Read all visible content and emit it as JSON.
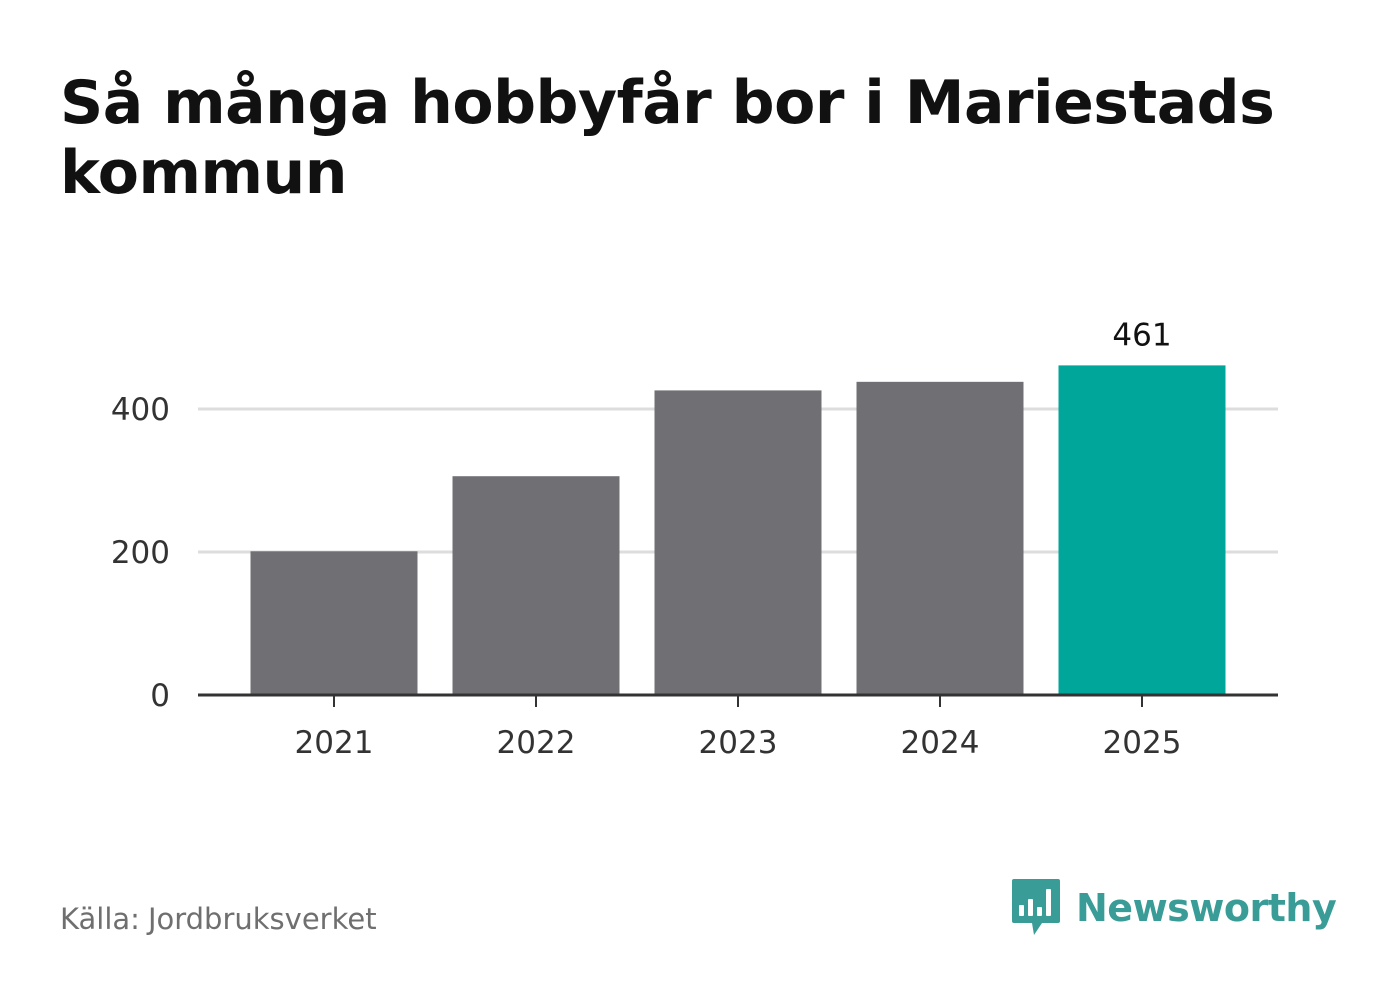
{
  "title": "Så många hobbyfår bor i Mariestads kommun",
  "source": {
    "prefix": "Källa:",
    "name": "Jordbruksverket"
  },
  "brand": {
    "name": "Newsworthy",
    "icon": "newsworthy-logo-icon",
    "color": "#3a9c97"
  },
  "colors": {
    "bar_default": "#706f74",
    "bar_highlight": "#00a69a",
    "grid": "#dddddd",
    "axis": "#333333"
  },
  "chart_data": {
    "type": "bar",
    "title": "Så många hobbyfår bor i Mariestads kommun",
    "categories": [
      "2021",
      "2022",
      "2023",
      "2024",
      "2025"
    ],
    "values": [
      201,
      306,
      426,
      438,
      461
    ],
    "highlight_index": 4,
    "data_labels": [
      {
        "category": "2025",
        "text": "461"
      }
    ],
    "xlabel": "",
    "ylabel": "",
    "yticks": [
      0,
      200,
      400
    ],
    "ylim": [
      0,
      482
    ],
    "grid": "horizontal"
  }
}
